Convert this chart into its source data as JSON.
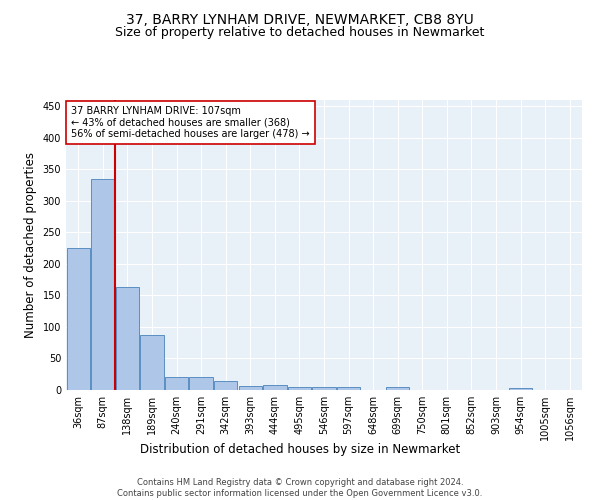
{
  "title1": "37, BARRY LYNHAM DRIVE, NEWMARKET, CB8 8YU",
  "title2": "Size of property relative to detached houses in Newmarket",
  "xlabel": "Distribution of detached houses by size in Newmarket",
  "ylabel": "Number of detached properties",
  "categories": [
    "36sqm",
    "87sqm",
    "138sqm",
    "189sqm",
    "240sqm",
    "291sqm",
    "342sqm",
    "393sqm",
    "444sqm",
    "495sqm",
    "546sqm",
    "597sqm",
    "648sqm",
    "699sqm",
    "750sqm",
    "801sqm",
    "852sqm",
    "903sqm",
    "954sqm",
    "1005sqm",
    "1056sqm"
  ],
  "values": [
    225,
    335,
    163,
    87,
    21,
    20,
    15,
    6,
    8,
    5,
    5,
    4,
    0,
    4,
    0,
    0,
    0,
    0,
    3,
    0,
    0
  ],
  "bar_color": "#aec6e8",
  "bar_edge_color": "#5a8fc2",
  "vline_color": "#cc0000",
  "annotation_text": "37 BARRY LYNHAM DRIVE: 107sqm\n← 43% of detached houses are smaller (368)\n56% of semi-detached houses are larger (478) →",
  "annotation_box_color": "#ffffff",
  "annotation_box_edge": "#cc0000",
  "footer": "Contains HM Land Registry data © Crown copyright and database right 2024.\nContains public sector information licensed under the Open Government Licence v3.0.",
  "bg_color": "#e8f0f8",
  "ylim": [
    0,
    460
  ],
  "title1_fontsize": 10,
  "title2_fontsize": 9,
  "ylabel_fontsize": 8.5,
  "xlabel_fontsize": 8.5,
  "tick_fontsize": 7,
  "footer_fontsize": 6,
  "annot_fontsize": 7
}
